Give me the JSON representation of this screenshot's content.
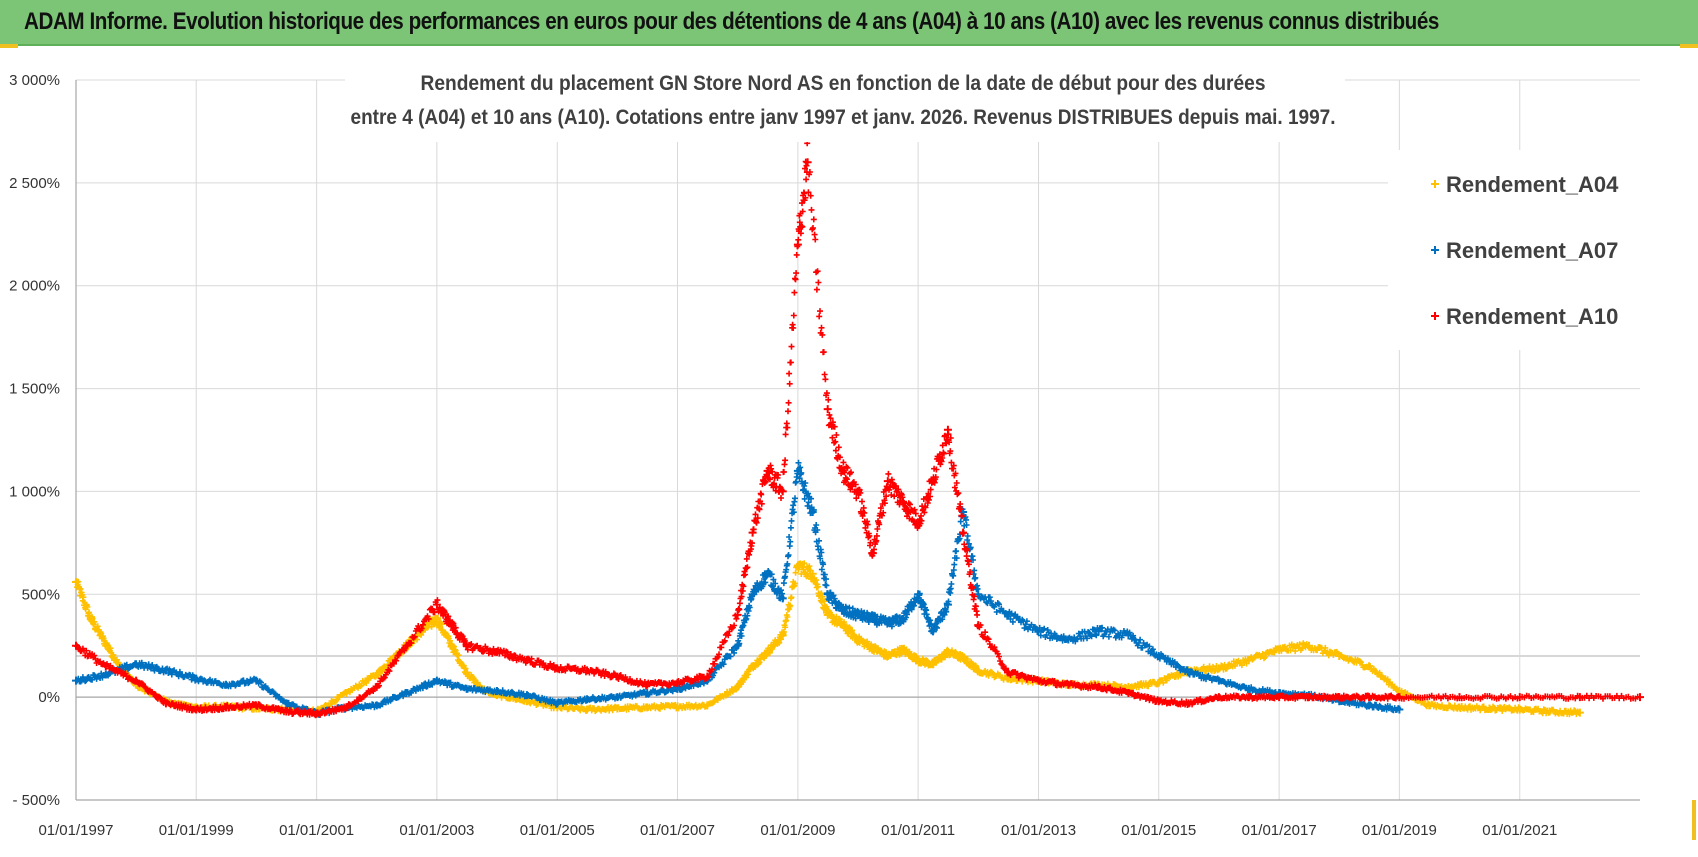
{
  "header": {
    "title": "ADAM Informe. Evolution historique des performances en euros pour des détentions de 4 ans (A04) à 10 ans (A10) avec les revenus connus distribués"
  },
  "colors": {
    "banner": "#7cc576",
    "A04": "#ffc000",
    "A07": "#0070c0",
    "A10": "#ff0000",
    "grid": "#d9d9d9"
  },
  "chart_data": {
    "type": "scatter",
    "title": "",
    "subtitle_lines": [
      "Rendement du placement GN Store Nord AS en fonction de la date de début pour des durées",
      "entre 4 (A04) et 10 ans (A10).  Cotations entre janv 1997 et janv. 2026. Revenus DISTRIBUES depuis mai. 1997."
    ],
    "xlabel": "",
    "ylabel": "",
    "x_axis": "date",
    "xlim": [
      "1997-01-01",
      "2023-01-01"
    ],
    "ylim": [
      -500,
      3000
    ],
    "y_unit": "%",
    "x_ticks": [
      "01/01/1997",
      "01/01/1999",
      "01/01/2001",
      "01/01/2003",
      "01/01/2005",
      "01/01/2007",
      "01/01/2009",
      "01/01/2011",
      "01/01/2013",
      "01/01/2015",
      "01/01/2017",
      "01/01/2019",
      "01/01/2021"
    ],
    "y_ticks": [
      "- 500%",
      "0%",
      "500%",
      "1 000%",
      "1 500%",
      "2 000%",
      "2 500%",
      "3 000%"
    ],
    "grid": true,
    "legend_position": "top-right",
    "series": [
      {
        "name": "Rendement_A04",
        "color": "#ffc000",
        "x": [
          "1997-01-01",
          "1997-04-01",
          "1997-07-01",
          "1997-10-01",
          "1998-01-01",
          "1998-04-01",
          "1998-07-01",
          "1998-10-01",
          "1999-01-01",
          "1999-07-01",
          "2000-01-01",
          "2000-07-01",
          "2001-01-01",
          "2001-07-01",
          "2002-01-01",
          "2002-04-01",
          "2002-07-01",
          "2002-10-01",
          "2003-01-01",
          "2003-04-01",
          "2003-07-01",
          "2003-10-01",
          "2004-01-01",
          "2004-07-01",
          "2005-01-01",
          "2005-07-01",
          "2006-01-01",
          "2006-07-01",
          "2007-01-01",
          "2007-07-01",
          "2008-01-01",
          "2008-04-01",
          "2008-07-01",
          "2008-10-01",
          "2009-01-01",
          "2009-04-01",
          "2009-07-01",
          "2009-10-01",
          "2010-01-01",
          "2010-04-01",
          "2010-07-01",
          "2010-10-01",
          "2011-01-01",
          "2011-04-01",
          "2011-07-01",
          "2011-10-01",
          "2012-01-01",
          "2012-07-01",
          "2013-01-01",
          "2013-07-01",
          "2014-01-01",
          "2014-07-01",
          "2015-01-01",
          "2015-07-01",
          "2016-01-01",
          "2016-07-01",
          "2017-01-01",
          "2017-07-01",
          "2018-01-01",
          "2018-07-01",
          "2019-01-01",
          "2019-07-01",
          "2020-01-01",
          "2020-07-01",
          "2021-01-01",
          "2021-07-01",
          "2022-01-01"
        ],
        "y": [
          560,
          380,
          260,
          140,
          60,
          20,
          -20,
          -40,
          -50,
          -45,
          -55,
          -60,
          -70,
          20,
          110,
          180,
          250,
          320,
          380,
          250,
          120,
          40,
          10,
          -20,
          -50,
          -60,
          -55,
          -50,
          -45,
          -40,
          50,
          150,
          220,
          300,
          640,
          600,
          400,
          350,
          280,
          240,
          200,
          230,
          180,
          160,
          220,
          190,
          130,
          90,
          80,
          60,
          60,
          50,
          70,
          130,
          140,
          180,
          230,
          250,
          200,
          150,
          30,
          -40,
          -50,
          -55,
          -60,
          -70,
          -75
        ]
      },
      {
        "name": "Rendement_A07",
        "color": "#0070c0",
        "x": [
          "1997-01-01",
          "1997-07-01",
          "1998-01-01",
          "1998-07-01",
          "1999-01-01",
          "1999-07-01",
          "2000-01-01",
          "2000-07-01",
          "2001-01-01",
          "2001-07-01",
          "2002-01-01",
          "2002-07-01",
          "2003-01-01",
          "2003-07-01",
          "2004-01-01",
          "2004-07-01",
          "2005-01-01",
          "2005-07-01",
          "2006-01-01",
          "2006-07-01",
          "2007-01-01",
          "2007-07-01",
          "2008-01-01",
          "2008-04-01",
          "2008-07-01",
          "2008-10-01",
          "2009-01-01",
          "2009-04-01",
          "2009-07-01",
          "2009-10-01",
          "2010-01-01",
          "2010-04-01",
          "2010-07-01",
          "2010-10-01",
          "2011-01-01",
          "2011-04-01",
          "2011-07-01",
          "2011-10-01",
          "2012-01-01",
          "2012-07-01",
          "2013-01-01",
          "2013-07-01",
          "2014-01-01",
          "2014-07-01",
          "2015-01-01",
          "2015-07-01",
          "2016-01-01",
          "2016-07-01",
          "2017-01-01",
          "2017-07-01",
          "2018-01-01",
          "2018-07-01",
          "2019-01-01"
        ],
        "y": [
          80,
          110,
          160,
          130,
          90,
          60,
          80,
          -30,
          -80,
          -50,
          -40,
          20,
          80,
          40,
          30,
          10,
          -30,
          -10,
          0,
          20,
          40,
          80,
          250,
          500,
          600,
          480,
          1100,
          900,
          500,
          420,
          400,
          380,
          360,
          380,
          500,
          320,
          450,
          900,
          500,
          400,
          320,
          280,
          320,
          300,
          200,
          120,
          80,
          40,
          20,
          10,
          -20,
          -40,
          -60
        ]
      },
      {
        "name": "Rendement_A10",
        "color": "#ff0000",
        "x": [
          "1997-01-01",
          "1997-07-01",
          "1998-01-01",
          "1998-07-01",
          "1999-01-01",
          "1999-07-01",
          "2000-01-01",
          "2000-07-01",
          "2001-01-01",
          "2001-07-01",
          "2002-01-01",
          "2002-07-01",
          "2003-01-01",
          "2003-04-01",
          "2003-07-01",
          "2004-01-01",
          "2004-07-01",
          "2005-01-01",
          "2005-07-01",
          "2006-01-01",
          "2006-07-01",
          "2007-01-01",
          "2007-07-01",
          "2008-01-01",
          "2008-04-01",
          "2008-07-01",
          "2008-10-01",
          "2009-01-01",
          "2009-03-01",
          "2009-07-01",
          "2009-10-01",
          "2010-01-01",
          "2010-04-01",
          "2010-07-01",
          "2010-10-01",
          "2011-01-01",
          "2011-04-01",
          "2011-07-01",
          "2011-10-01",
          "2012-01-01",
          "2012-07-01",
          "2013-01-01",
          "2013-07-01",
          "2014-01-01",
          "2014-07-01",
          "2015-01-01",
          "2015-07-01",
          "2016-01-01",
          "2016-07-01",
          "2017-01-01",
          "2017-07-01",
          "2018-01-01",
          "2018-07-01",
          "2019-01-01",
          "2020-01-01",
          "2021-01-01",
          "2022-01-01",
          "2023-01-01"
        ],
        "y": [
          250,
          150,
          80,
          -30,
          -60,
          -50,
          -40,
          -70,
          -80,
          -50,
          50,
          250,
          450,
          350,
          250,
          220,
          180,
          140,
          130,
          100,
          60,
          70,
          100,
          400,
          800,
          1100,
          1000,
          2200,
          2600,
          1400,
          1100,
          1000,
          700,
          1050,
          950,
          850,
          1050,
          1300,
          800,
          350,
          120,
          80,
          60,
          50,
          20,
          -20,
          -30,
          0,
          0,
          0,
          0,
          0,
          0,
          0,
          0,
          0,
          0,
          0
        ]
      }
    ]
  }
}
